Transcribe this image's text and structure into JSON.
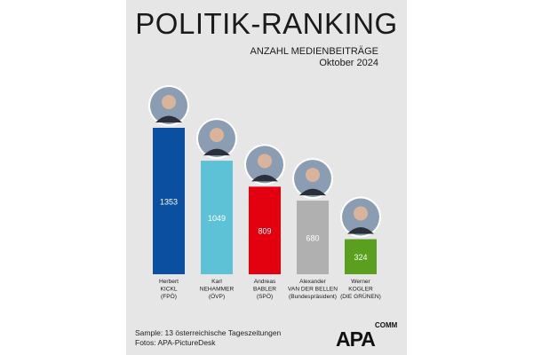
{
  "chart_data": {
    "type": "bar",
    "title": "POLITIK-RANKING",
    "subtitle": "ANZAHL MEDIENBEITRÄGE",
    "period": "Oktober 2024",
    "categories": [
      [
        "Herbert",
        "KICKL",
        "(FPÖ)"
      ],
      [
        "Karl",
        "NEHAMMER",
        "(ÖVP)"
      ],
      [
        "Andreas",
        "BABLER",
        "(SPÖ)"
      ],
      [
        "Alexander",
        "VAN DER BELLEN",
        "(Bundespräsident)"
      ],
      [
        "Werner",
        "KOGLER",
        "(DIE GRÜNEN)"
      ]
    ],
    "values": [
      1353,
      1049,
      809,
      680,
      324
    ],
    "colors": [
      "#0b4fa0",
      "#5ec2d6",
      "#e3000f",
      "#b0b0b0",
      "#5aa01e"
    ],
    "ylim": [
      0,
      1353
    ]
  },
  "footnote": {
    "sample": "Sample: 13 österreichische Tageszeitungen",
    "photos": "Fotos: APA-PictureDesk"
  },
  "logo": {
    "text": "APA",
    "sub": "COMM"
  }
}
